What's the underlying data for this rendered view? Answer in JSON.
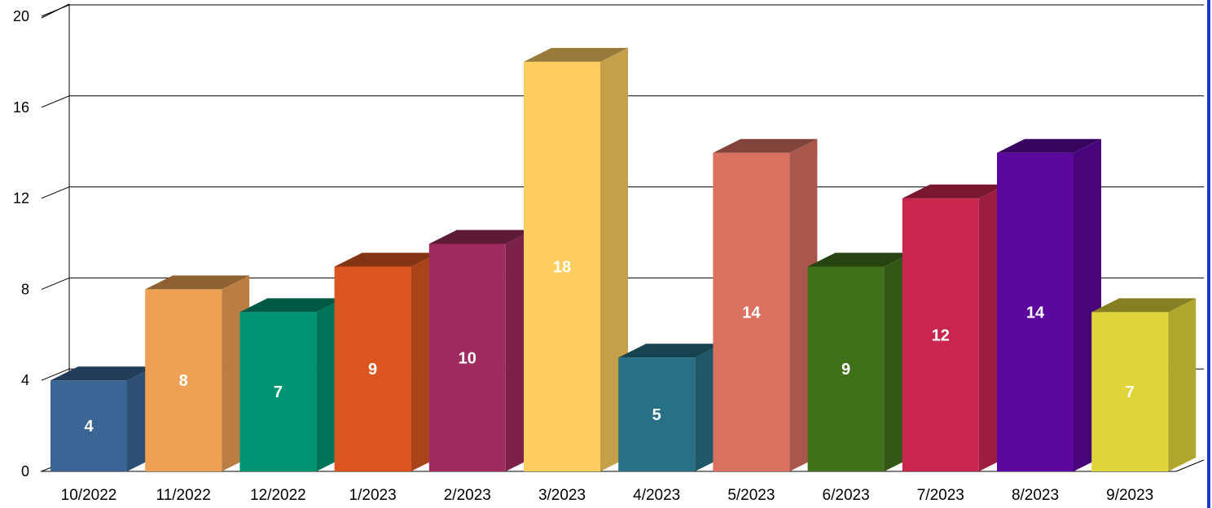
{
  "chart_data": {
    "type": "bar",
    "style": "3d",
    "categories": [
      "10/2022",
      "11/2022",
      "12/2022",
      "1/2023",
      "2/2023",
      "3/2023",
      "4/2023",
      "5/2023",
      "6/2023",
      "7/2023",
      "8/2023",
      "9/2023"
    ],
    "values": [
      4,
      8,
      7,
      9,
      10,
      18,
      5,
      14,
      9,
      12,
      14,
      7
    ],
    "ylim": [
      0,
      20
    ],
    "yticks": [
      "0",
      "4",
      "8",
      "12",
      "16",
      "20"
    ],
    "grid": true,
    "bar_colors": [
      "#3a6595",
      "#eea154",
      "#009572",
      "#db561f",
      "#9f2c5e",
      "#fdcd60",
      "#277085",
      "#d97060",
      "#41701a",
      "#c8264f",
      "#5c079e",
      "#e0d53a"
    ],
    "label_color": "#ffffff",
    "title": "",
    "xlabel": "",
    "ylabel": ""
  },
  "frame": {
    "accent_border": "#1c37c4"
  }
}
